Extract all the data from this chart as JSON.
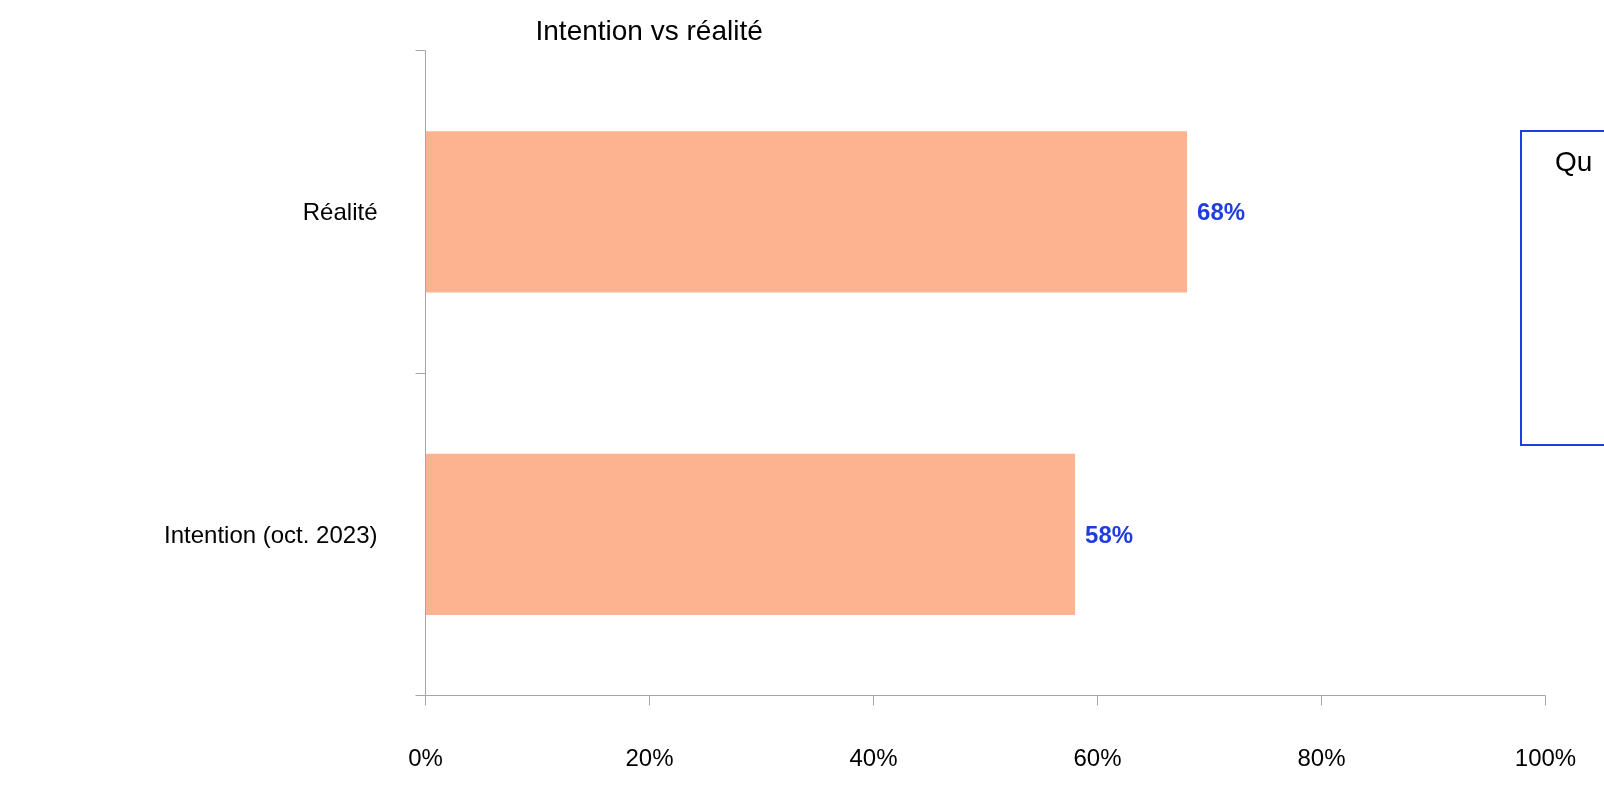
{
  "chart_data": {
    "type": "bar",
    "orientation": "horizontal",
    "title": "Intention vs réalité",
    "categories": [
      "Réalité",
      "Intention (oct. 2023)"
    ],
    "values": [
      68,
      58
    ],
    "color": "#fdb38f",
    "value_labels": [
      "68%",
      "58%"
    ],
    "xlim": [
      0,
      100
    ],
    "xticks": [
      {
        "value": 0,
        "label": "0%"
      },
      {
        "value": 20,
        "label": "20%"
      },
      {
        "value": 40,
        "label": "40%"
      },
      {
        "value": 60,
        "label": "60%"
      },
      {
        "value": 80,
        "label": "80%"
      },
      {
        "value": 100,
        "label": "100%"
      }
    ],
    "grid": false,
    "annotations": [
      "Qu"
    ]
  }
}
